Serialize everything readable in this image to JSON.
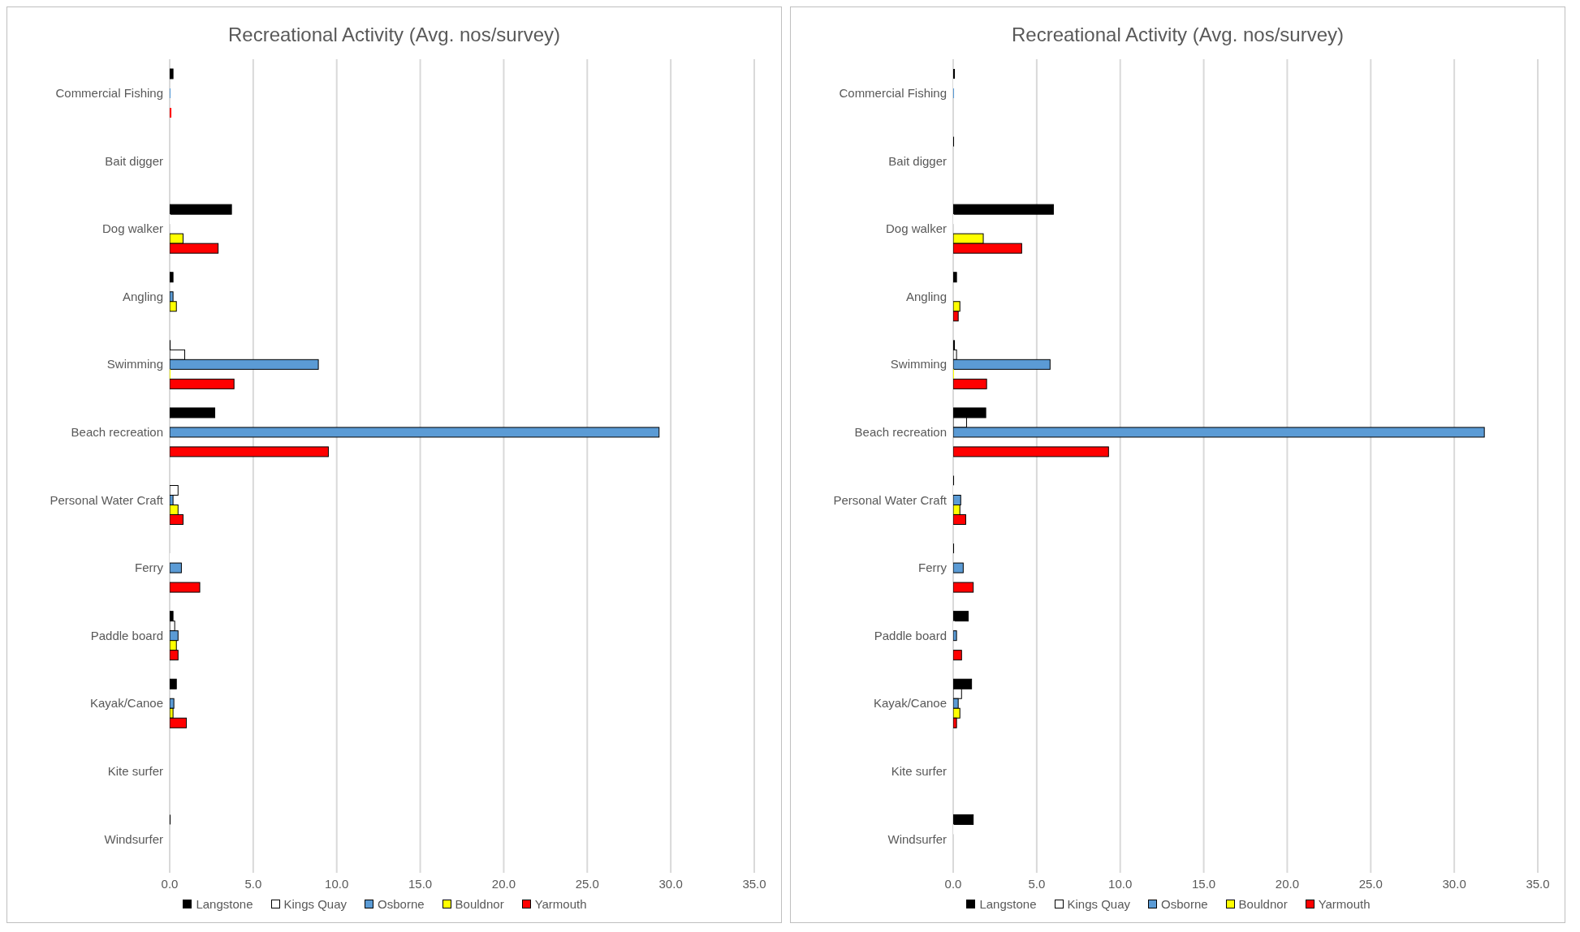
{
  "chart_data": [
    {
      "type": "bar",
      "orientation": "horizontal",
      "title": "Recreational Activity (Avg. nos/survey)",
      "categories": [
        "Commercial Fishing",
        "Bait digger",
        "Dog walker",
        "Angling",
        "Swimming",
        "Beach recreation",
        "Personal Water Craft",
        "Ferry",
        "Paddle board",
        "Kayak/Canoe",
        "Kite surfer",
        "Windsurfer"
      ],
      "xlim": [
        0,
        35
      ],
      "xticks": [
        {
          "value": 0,
          "label": "0.0"
        },
        {
          "value": 5,
          "label": "5.0"
        },
        {
          "value": 10,
          "label": "10.0"
        },
        {
          "value": 15,
          "label": "15.0"
        },
        {
          "value": 20,
          "label": "20.0"
        },
        {
          "value": 25,
          "label": "25.0"
        },
        {
          "value": 30,
          "label": "30.0"
        },
        {
          "value": 35,
          "label": "35.0"
        }
      ],
      "grid": "x",
      "legend": "bottom",
      "series": [
        {
          "name": "Langstone",
          "color": "#000000",
          "values": [
            0.2,
            0,
            3.7,
            0.2,
            0.05,
            2.7,
            0,
            0,
            0.2,
            0.4,
            0,
            0.05
          ]
        },
        {
          "name": "Kings Quay",
          "color": "#ffffff",
          "values": [
            0,
            0,
            0.05,
            0,
            0.9,
            0,
            0.5,
            0.05,
            0.3,
            0,
            0,
            0
          ]
        },
        {
          "name": "Osborne",
          "color": "#5b9bd5",
          "values": [
            0.05,
            0,
            0,
            0.2,
            8.9,
            29.3,
            0.2,
            0.7,
            0.5,
            0.25,
            0,
            0
          ]
        },
        {
          "name": "Bouldnor",
          "color": "#ffff00",
          "values": [
            0,
            0,
            0.8,
            0.4,
            0.05,
            0,
            0.5,
            0,
            0.4,
            0.2,
            0,
            0
          ]
        },
        {
          "name": "Yarmouth",
          "color": "#ff0000",
          "values": [
            0.1,
            0,
            2.9,
            0,
            3.85,
            9.5,
            0.8,
            1.8,
            0.5,
            1.0,
            0,
            0
          ]
        }
      ]
    },
    {
      "type": "bar",
      "orientation": "horizontal",
      "title": "Recreational Activity (Avg. nos/survey)",
      "categories": [
        "Commercial Fishing",
        "Bait digger",
        "Dog walker",
        "Angling",
        "Swimming",
        "Beach recreation",
        "Personal Water Craft",
        "Ferry",
        "Paddle board",
        "Kayak/Canoe",
        "Kite surfer",
        "Windsurfer"
      ],
      "xlim": [
        0,
        35
      ],
      "xticks": [
        {
          "value": 0,
          "label": "0.0"
        },
        {
          "value": 5,
          "label": "5.0"
        },
        {
          "value": 10,
          "label": "10.0"
        },
        {
          "value": 15,
          "label": "15.0"
        },
        {
          "value": 20,
          "label": "20.0"
        },
        {
          "value": 25,
          "label": "25.0"
        },
        {
          "value": 30,
          "label": "30.0"
        },
        {
          "value": 35,
          "label": "35.0"
        }
      ],
      "grid": "x",
      "legend": "bottom",
      "series": [
        {
          "name": "Langstone",
          "color": "#000000",
          "values": [
            0.1,
            0.05,
            6.0,
            0.2,
            0.1,
            1.95,
            0.05,
            0.05,
            0.9,
            1.1,
            0,
            1.2
          ]
        },
        {
          "name": "Kings Quay",
          "color": "#ffffff",
          "values": [
            0.05,
            0,
            0.05,
            0,
            0.2,
            0.8,
            0.05,
            0,
            0.1,
            0.5,
            0,
            0.05
          ]
        },
        {
          "name": "Osborne",
          "color": "#5b9bd5",
          "values": [
            0.05,
            0,
            0,
            0,
            5.8,
            31.8,
            0.45,
            0.6,
            0.2,
            0.3,
            0,
            0
          ]
        },
        {
          "name": "Bouldnor",
          "color": "#ffff00",
          "values": [
            0,
            0,
            1.8,
            0.4,
            0.05,
            0,
            0.4,
            0,
            0,
            0.4,
            0,
            0
          ]
        },
        {
          "name": "Yarmouth",
          "color": "#ff0000",
          "values": [
            0,
            0,
            4.1,
            0.3,
            2.0,
            9.3,
            0.75,
            1.2,
            0.5,
            0.2,
            0,
            0
          ]
        }
      ]
    }
  ]
}
